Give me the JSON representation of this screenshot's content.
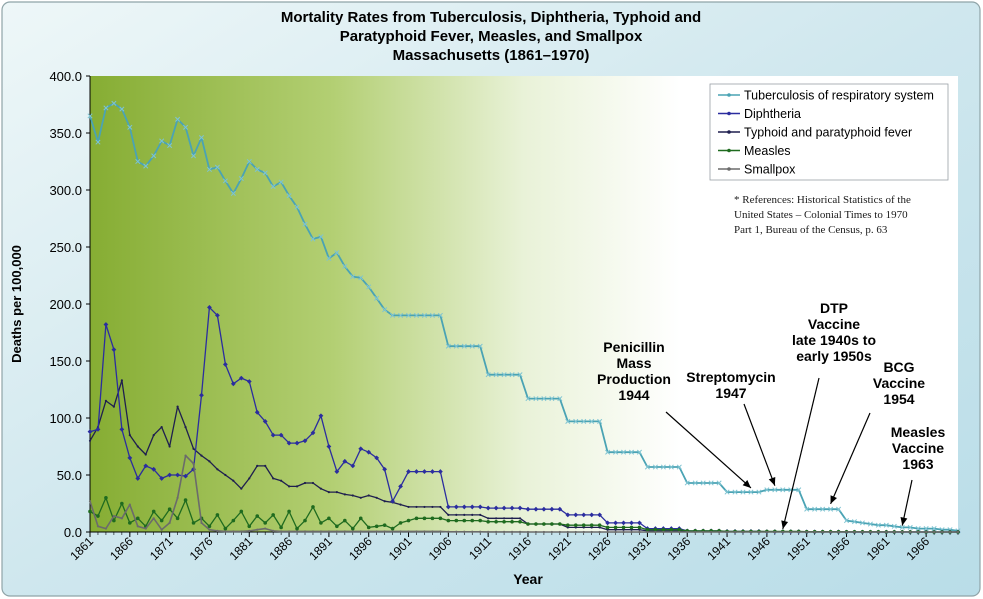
{
  "chart_data": {
    "type": "line",
    "title_lines": [
      "Mortality Rates from Tuberculosis, Diphtheria, Typhoid and",
      "Paratyphoid Fever, Measles, and Smallpox",
      "Massachusetts (1861–1970)"
    ],
    "xlabel": "Year",
    "ylabel": "Deaths per 100,000",
    "xlim": [
      1861,
      1970
    ],
    "ylim": [
      0,
      400
    ],
    "y_ticks": [
      "0.0",
      "50.0",
      "100.0",
      "150.0",
      "200.0",
      "250.0",
      "300.0",
      "350.0",
      "400.0"
    ],
    "x_ticks": [
      "1861",
      "1866",
      "1871",
      "1876",
      "1881",
      "1886",
      "1891",
      "1896",
      "1901",
      "1906",
      "1911",
      "1916",
      "1921",
      "1926",
      "1931",
      "1936",
      "1941",
      "1946",
      "1951",
      "1956",
      "1961",
      "1966"
    ],
    "grid": false,
    "legend_position": "top-right",
    "series": [
      {
        "name": "Tuberculosis of respiratory system",
        "color": "#4aa3b4",
        "x": [
          1861,
          1862,
          1863,
          1864,
          1865,
          1866,
          1867,
          1868,
          1869,
          1870,
          1871,
          1872,
          1873,
          1874,
          1875,
          1876,
          1877,
          1878,
          1879,
          1880,
          1881,
          1882,
          1883,
          1884,
          1885,
          1886,
          1887,
          1888,
          1889,
          1890,
          1891,
          1892,
          1893,
          1894,
          1895,
          1896,
          1897,
          1898,
          1899,
          1900,
          1901,
          1902,
          1903,
          1904,
          1905,
          1906,
          1907,
          1908,
          1909,
          1910,
          1911,
          1912,
          1913,
          1914,
          1915,
          1916,
          1917,
          1918,
          1919,
          1920,
          1921,
          1922,
          1923,
          1924,
          1925,
          1926,
          1927,
          1928,
          1929,
          1930,
          1931,
          1932,
          1933,
          1934,
          1935,
          1936,
          1937,
          1938,
          1939,
          1940,
          1941,
          1942,
          1943,
          1944,
          1945,
          1946,
          1947,
          1948,
          1949,
          1950,
          1951,
          1952,
          1953,
          1954,
          1955,
          1956,
          1957,
          1958,
          1959,
          1960,
          1961,
          1962,
          1963,
          1964,
          1965,
          1966,
          1967,
          1968,
          1969,
          1970
        ],
        "values": [
          365,
          342,
          372,
          376,
          371,
          355,
          325,
          321,
          330,
          343,
          339,
          362,
          355,
          330,
          346,
          318,
          320,
          308,
          297,
          310,
          325,
          318,
          315,
          303,
          307,
          295,
          285,
          270,
          257,
          259,
          240,
          245,
          233,
          224,
          223,
          215,
          205,
          195,
          190,
          190,
          190,
          190,
          190,
          190,
          190,
          163,
          163,
          163,
          163,
          163,
          138,
          138,
          138,
          138,
          138,
          117,
          117,
          117,
          117,
          117,
          97,
          97,
          97,
          97,
          97,
          70,
          70,
          70,
          70,
          70,
          57,
          57,
          57,
          57,
          57,
          43,
          43,
          43,
          43,
          43,
          35,
          35,
          35,
          35,
          35,
          37,
          37,
          37,
          37,
          37,
          20,
          20,
          20,
          20,
          20,
          10,
          9,
          8,
          7,
          6,
          6,
          5,
          4,
          4,
          3,
          3,
          3,
          2,
          2,
          1
        ]
      },
      {
        "name": "Diphtheria",
        "color": "#2b2d9f",
        "x": [
          1861,
          1862,
          1863,
          1864,
          1865,
          1866,
          1867,
          1868,
          1869,
          1870,
          1871,
          1872,
          1873,
          1874,
          1875,
          1876,
          1877,
          1878,
          1879,
          1880,
          1881,
          1882,
          1883,
          1884,
          1885,
          1886,
          1887,
          1888,
          1889,
          1890,
          1891,
          1892,
          1893,
          1894,
          1895,
          1896,
          1897,
          1898,
          1899,
          1900,
          1901,
          1902,
          1903,
          1904,
          1905,
          1906,
          1907,
          1908,
          1909,
          1910,
          1911,
          1912,
          1913,
          1914,
          1915,
          1916,
          1917,
          1918,
          1919,
          1920,
          1921,
          1922,
          1923,
          1924,
          1925,
          1926,
          1927,
          1928,
          1929,
          1930,
          1931,
          1932,
          1933,
          1934,
          1935,
          1936,
          1937,
          1938,
          1939,
          1940,
          1941,
          1942,
          1943,
          1944,
          1945,
          1946,
          1947,
          1948,
          1949,
          1950,
          1951,
          1952,
          1953,
          1954,
          1955,
          1956,
          1957,
          1958,
          1959,
          1960,
          1961,
          1962,
          1963,
          1964,
          1965,
          1966,
          1967,
          1968,
          1969,
          1970
        ],
        "values": [
          88,
          90,
          182,
          160,
          90,
          65,
          47,
          58,
          55,
          47,
          50,
          50,
          49,
          55,
          120,
          197,
          190,
          147,
          130,
          135,
          132,
          105,
          97,
          85,
          85,
          78,
          78,
          80,
          87,
          102,
          75,
          53,
          62,
          58,
          73,
          70,
          65,
          55,
          27,
          40,
          53,
          53,
          53,
          53,
          53,
          22,
          22,
          22,
          22,
          22,
          21,
          21,
          21,
          21,
          21,
          20,
          20,
          20,
          20,
          20,
          15,
          15,
          15,
          15,
          15,
          8,
          8,
          8,
          8,
          8,
          3,
          3,
          3,
          3,
          3,
          1,
          1,
          1,
          1,
          1,
          0.5,
          0.5,
          0.5,
          0.5,
          0.5,
          0.3,
          0.3,
          0.3,
          0.3,
          0.3,
          0.1,
          0.1,
          0.1,
          0.1,
          0.1,
          0,
          0,
          0,
          0,
          0,
          0,
          0,
          0,
          0,
          0,
          0,
          0,
          0,
          0,
          0
        ]
      },
      {
        "name": "Typhoid and paratyphoid fever",
        "color": "#1f1f4f",
        "x": [
          1861,
          1862,
          1863,
          1864,
          1865,
          1866,
          1867,
          1868,
          1869,
          1870,
          1871,
          1872,
          1873,
          1874,
          1875,
          1876,
          1877,
          1878,
          1879,
          1880,
          1881,
          1882,
          1883,
          1884,
          1885,
          1886,
          1887,
          1888,
          1889,
          1890,
          1891,
          1892,
          1893,
          1894,
          1895,
          1896,
          1897,
          1898,
          1899,
          1900,
          1901,
          1902,
          1903,
          1904,
          1905,
          1906,
          1907,
          1908,
          1909,
          1910,
          1911,
          1912,
          1913,
          1914,
          1915,
          1916,
          1917,
          1918,
          1919,
          1920,
          1921,
          1922,
          1923,
          1924,
          1925,
          1926,
          1927,
          1928,
          1929,
          1930,
          1931,
          1932,
          1933,
          1934,
          1935,
          1936,
          1937,
          1938,
          1939,
          1940,
          1941,
          1942,
          1943,
          1944,
          1945,
          1946,
          1947,
          1948,
          1949,
          1950,
          1951,
          1952,
          1953,
          1954,
          1955,
          1956,
          1957,
          1958,
          1959,
          1960,
          1961,
          1962,
          1963,
          1964,
          1965,
          1966,
          1967,
          1968,
          1969,
          1970
        ],
        "values": [
          80,
          92,
          115,
          110,
          133,
          85,
          75,
          68,
          85,
          92,
          75,
          110,
          92,
          73,
          67,
          62,
          55,
          50,
          45,
          38,
          47,
          58,
          58,
          47,
          45,
          40,
          40,
          43,
          43,
          38,
          35,
          35,
          33,
          32,
          30,
          32,
          30,
          27,
          26,
          24,
          22,
          22,
          22,
          22,
          22,
          15,
          15,
          15,
          15,
          15,
          12,
          12,
          12,
          12,
          12,
          7,
          7,
          7,
          7,
          7,
          4,
          4,
          4,
          4,
          4,
          2,
          2,
          2,
          2,
          2,
          1,
          1,
          1,
          1,
          1,
          0.5,
          0.5,
          0.5,
          0.5,
          0.5,
          0.3,
          0.3,
          0.3,
          0.3,
          0.3,
          0.1,
          0.1,
          0.1,
          0.1,
          0.1,
          0,
          0,
          0,
          0,
          0,
          0,
          0,
          0,
          0,
          0,
          0,
          0,
          0,
          0,
          0,
          0,
          0,
          0,
          0,
          0
        ]
      },
      {
        "name": "Measles",
        "color": "#1f6b1f",
        "x": [
          1861,
          1862,
          1863,
          1864,
          1865,
          1866,
          1867,
          1868,
          1869,
          1870,
          1871,
          1872,
          1873,
          1874,
          1875,
          1876,
          1877,
          1878,
          1879,
          1880,
          1881,
          1882,
          1883,
          1884,
          1885,
          1886,
          1887,
          1888,
          1889,
          1890,
          1891,
          1892,
          1893,
          1894,
          1895,
          1896,
          1897,
          1898,
          1899,
          1900,
          1901,
          1902,
          1903,
          1904,
          1905,
          1906,
          1907,
          1908,
          1909,
          1910,
          1911,
          1912,
          1913,
          1914,
          1915,
          1916,
          1917,
          1918,
          1919,
          1920,
          1921,
          1922,
          1923,
          1924,
          1925,
          1926,
          1927,
          1928,
          1929,
          1930,
          1931,
          1932,
          1933,
          1934,
          1935,
          1936,
          1937,
          1938,
          1939,
          1940,
          1941,
          1942,
          1943,
          1944,
          1945,
          1946,
          1947,
          1948,
          1949,
          1950,
          1951,
          1952,
          1953,
          1954,
          1955,
          1956,
          1957,
          1958,
          1959,
          1960,
          1961,
          1962,
          1963,
          1964,
          1965,
          1966,
          1967,
          1968,
          1969,
          1970
        ],
        "values": [
          18,
          14,
          30,
          10,
          25,
          8,
          12,
          5,
          18,
          10,
          20,
          12,
          28,
          8,
          12,
          5,
          15,
          3,
          10,
          18,
          5,
          14,
          8,
          15,
          4,
          18,
          3,
          10,
          22,
          8,
          12,
          5,
          10,
          3,
          12,
          4,
          5,
          6,
          3,
          8,
          10,
          12,
          12,
          12,
          12,
          10,
          10,
          10,
          10,
          10,
          9,
          9,
          9,
          9,
          9,
          7,
          7,
          7,
          7,
          7,
          6,
          6,
          6,
          6,
          6,
          4,
          4,
          4,
          4,
          4,
          2,
          2,
          2,
          2,
          2,
          1,
          1,
          1,
          1,
          1,
          0.5,
          0.5,
          0.5,
          0.5,
          0.5,
          0.5,
          0.5,
          0.5,
          0.5,
          0.5,
          0.3,
          0.3,
          0.3,
          0.3,
          0.3,
          0.2,
          0.2,
          0.2,
          0.2,
          0.2,
          0.1,
          0.1,
          0.1,
          0.1,
          0.1,
          0,
          0,
          0,
          0,
          0
        ]
      },
      {
        "name": "Smallpox",
        "color": "#6b6b6b",
        "x": [
          1861,
          1862,
          1863,
          1864,
          1865,
          1866,
          1867,
          1868,
          1869,
          1870,
          1871,
          1872,
          1873,
          1874,
          1875,
          1876,
          1877,
          1878,
          1879,
          1880,
          1881,
          1882,
          1883,
          1884,
          1885,
          1886,
          1887,
          1888,
          1889,
          1890,
          1891,
          1892,
          1893,
          1894,
          1895,
          1896,
          1897,
          1898,
          1899,
          1900,
          1901,
          1902,
          1903,
          1904,
          1905,
          1906,
          1907,
          1908,
          1909,
          1910,
          1911,
          1912,
          1913,
          1914,
          1915,
          1916,
          1917,
          1918,
          1919,
          1920,
          1921,
          1922,
          1923,
          1924,
          1925,
          1926,
          1927,
          1928,
          1929,
          1930,
          1931,
          1932,
          1933,
          1934,
          1935,
          1936,
          1937,
          1938,
          1939,
          1940,
          1941,
          1942,
          1943,
          1944,
          1945,
          1946,
          1947,
          1948,
          1949,
          1950,
          1951,
          1952,
          1953,
          1954,
          1955,
          1956,
          1957,
          1958,
          1959,
          1960,
          1961,
          1962,
          1963,
          1964,
          1965,
          1966,
          1967,
          1968,
          1969,
          1970
        ],
        "values": [
          27,
          5,
          3,
          14,
          12,
          24,
          5,
          3,
          12,
          2,
          8,
          30,
          67,
          60,
          8,
          2,
          1,
          0.5,
          0.5,
          0.5,
          1,
          2,
          3,
          1,
          0.5,
          0.5,
          0.5,
          0.5,
          0.5,
          0.5,
          0.5,
          0.5,
          0.5,
          0.5,
          0.5,
          0.5,
          0.5,
          0.5,
          0.5,
          0.5,
          0.5,
          0.5,
          0.5,
          0.5,
          0.5,
          0.2,
          0.2,
          0.2,
          0.2,
          0.2,
          0.1,
          0.1,
          0.1,
          0.1,
          0.1,
          0,
          0,
          0,
          0,
          0,
          0,
          0,
          0,
          0,
          0,
          0,
          0,
          0,
          0,
          0,
          0,
          0,
          0,
          0,
          0,
          0,
          0,
          0,
          0,
          0,
          0,
          0,
          0,
          0,
          0,
          0,
          0,
          0,
          0,
          0,
          0,
          0,
          0,
          0,
          0,
          0,
          0,
          0,
          0,
          0,
          0,
          0,
          0,
          0,
          0,
          0,
          0,
          0,
          0,
          0
        ]
      }
    ],
    "reference_lines": [
      "* References: Historical Statistics of the",
      "United States – Colonial Times to 1970",
      "Part 1, Bureau of the Census, p. 63"
    ],
    "annotations": [
      {
        "lines": [
          "Penicillin",
          "Mass",
          "Production",
          "1944"
        ],
        "target_x": 1944,
        "target_y": 36
      },
      {
        "lines": [
          "Streptomycin",
          "1947"
        ],
        "target_x": 1947,
        "target_y": 38
      },
      {
        "lines": [
          "DTP",
          "Vaccine",
          "late 1940s to",
          "early 1950s"
        ],
        "target_x": 1948,
        "target_y": 0
      },
      {
        "lines": [
          "BCG",
          "Vaccine",
          "1954"
        ],
        "target_x": 1954,
        "target_y": 22
      },
      {
        "lines": [
          "Measles",
          "Vaccine",
          "1963"
        ],
        "target_x": 1963,
        "target_y": 3
      }
    ]
  }
}
